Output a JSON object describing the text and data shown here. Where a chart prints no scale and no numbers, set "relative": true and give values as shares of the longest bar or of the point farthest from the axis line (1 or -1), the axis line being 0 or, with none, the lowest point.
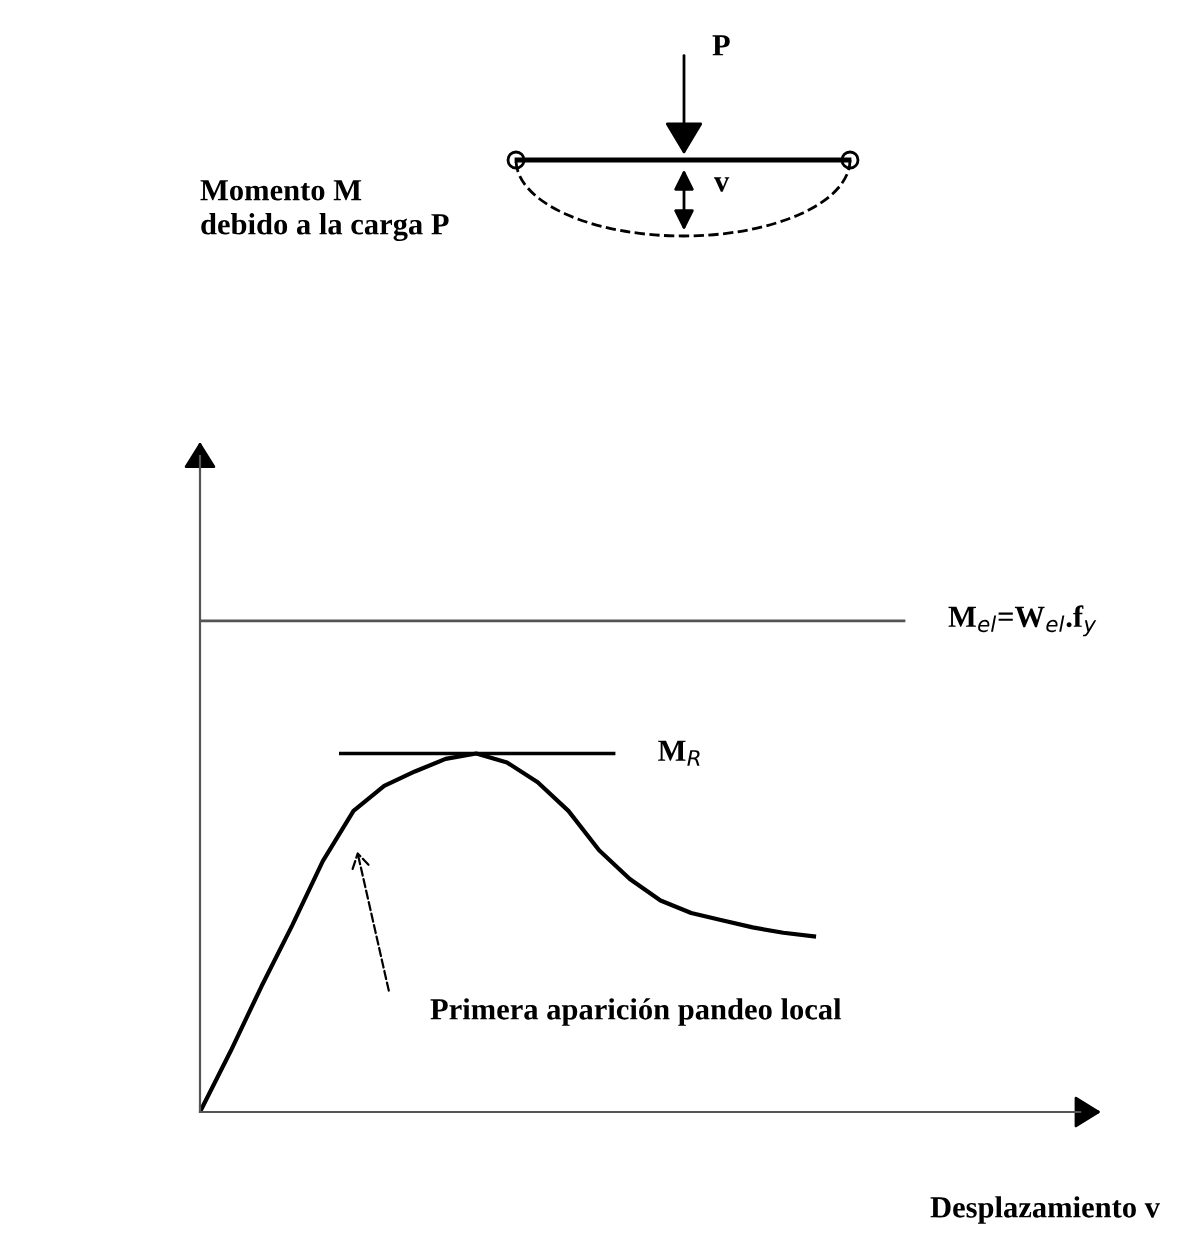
{
  "chart_data": {
    "type": "line",
    "relative": true,
    "xlabel": "Desplazamiento v",
    "marker": "none",
    "line_style": "solid",
    "categories": [
      null,
      null,
      null,
      null,
      null,
      null,
      null,
      null,
      null,
      null,
      null,
      null,
      null,
      null,
      null,
      null,
      null,
      null,
      null,
      null,
      null
    ],
    "series": [
      {
        "color": "#000000",
        "values": [
          0,
          0.17,
          0.35,
          0.52,
          0.7,
          0.84,
          0.91,
          0.95,
          0.985,
          1.0,
          0.975,
          0.92,
          0.84,
          0.73,
          0.65,
          0.59,
          0.555,
          0.535,
          0.515,
          0.5,
          0.49
        ]
      }
    ],
    "ref_lines": [
      {
        "axis": "y",
        "value": 1.0,
        "label": "M$_{R}$",
        "color": "#000000"
      },
      {
        "axis": "y",
        "value": 1.37,
        "label": "M$_{el}$=W$_{el}$.f$_{y}$",
        "color": "#555555"
      }
    ],
    "annotations": [
      "Momento M\ndebido a la carga P",
      "Primera aparición pandeo local",
      "P",
      "v"
    ]
  }
}
